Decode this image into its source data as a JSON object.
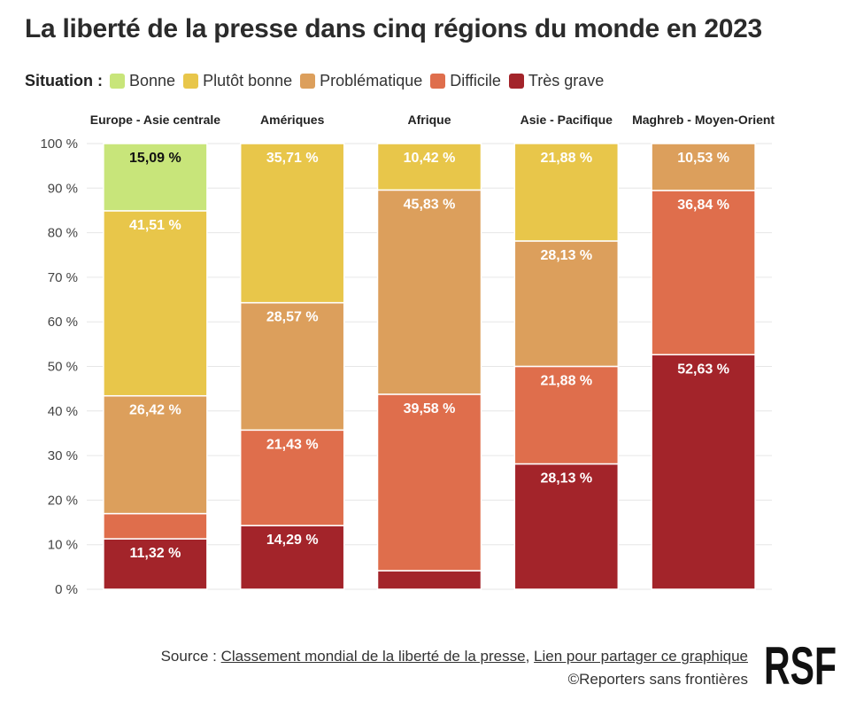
{
  "title": "La liberté de la presse dans cinq régions du monde en 2023",
  "legend": {
    "title": "Situation :",
    "items": [
      {
        "label": "Bonne",
        "color": "#c8e57a"
      },
      {
        "label": "Plutôt bonne",
        "color": "#e8c64a"
      },
      {
        "label": "Problématique",
        "color": "#dc9f5c"
      },
      {
        "label": "Difficile",
        "color": "#df6e4c"
      },
      {
        "label": "Très grave",
        "color": "#a3242a"
      }
    ]
  },
  "chart_data": {
    "type": "bar",
    "stacked": true,
    "title": "La liberté de la presse dans cinq régions du monde en 2023",
    "categories": [
      "Europe - Asie centrale",
      "Amériques",
      "Afrique",
      "Asie - Pacifique",
      "Maghreb - Moyen-Orient"
    ],
    "ylim": [
      0,
      100
    ],
    "yticks": [
      "0 %",
      "10 %",
      "20 %",
      "30 %",
      "40 %",
      "50 %",
      "60 %",
      "70 %",
      "80 %",
      "90 %",
      "100 %"
    ],
    "series": [
      {
        "name": "Très grave",
        "color": "#a3242a",
        "values": [
          11.32,
          14.29,
          4.17,
          28.13,
          52.63
        ],
        "labels": [
          "11,32 %",
          "14,29 %",
          "",
          "28,13 %",
          "52,63 %"
        ]
      },
      {
        "name": "Difficile",
        "color": "#df6e4c",
        "values": [
          5.66,
          21.43,
          39.58,
          21.88,
          36.84
        ],
        "labels": [
          "",
          "21,43 %",
          "39,58 %",
          "21,88 %",
          "36,84 %"
        ]
      },
      {
        "name": "Problématique",
        "color": "#dc9f5c",
        "values": [
          26.42,
          28.57,
          45.83,
          28.13,
          10.53
        ],
        "labels": [
          "26,42 %",
          "28,57 %",
          "45,83 %",
          "28,13 %",
          "10,53 %"
        ]
      },
      {
        "name": "Plutôt bonne",
        "color": "#e8c64a",
        "values": [
          41.51,
          35.71,
          10.42,
          21.88,
          0
        ],
        "labels": [
          "41,51 %",
          "35,71 %",
          "10,42 %",
          "21,88 %",
          ""
        ]
      },
      {
        "name": "Bonne",
        "color": "#c8e57a",
        "values": [
          15.09,
          0,
          0,
          0,
          0
        ],
        "labels": [
          "15,09 %",
          "",
          "",
          "",
          ""
        ]
      }
    ]
  },
  "footer": {
    "source_prefix": "Source : ",
    "source_link": "Classement mondial de la liberté de la presse",
    "separator": ", ",
    "share_link": "Lien pour partager ce graphique",
    "copyright": "©Reporters sans frontières"
  },
  "logo": {
    "text": "RSF"
  }
}
